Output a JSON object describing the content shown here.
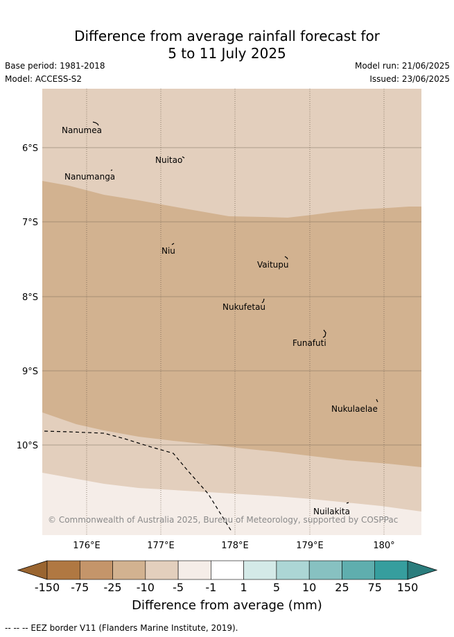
{
  "title_line1": "Difference from average rainfall forecast for",
  "title_line2": "5 to 11 July 2025",
  "base_period": "Base period: 1981-2018",
  "model": "Model: ACCESS-S2",
  "model_run": "Model run: 21/06/2025",
  "issued": "Issued: 23/06/2025",
  "copyright": "© Commonwealth of Australia 2025, Bureau of Meteorology, supported by COSPPac",
  "x_ticks": [
    "176°E",
    "177°E",
    "178°E",
    "179°E",
    "180°"
  ],
  "y_ticks": [
    "6°S",
    "7°S",
    "8°S",
    "9°S",
    "10°S"
  ],
  "islands": [
    {
      "name": "Nanumea"
    },
    {
      "name": "Nuitao"
    },
    {
      "name": "Nanumanga"
    },
    {
      "name": "Niu"
    },
    {
      "name": "Vaitupu"
    },
    {
      "name": "Nukufetau"
    },
    {
      "name": "Funafuti"
    },
    {
      "name": "Nukulaelae"
    },
    {
      "name": "Nuilakita"
    }
  ],
  "colorbar": {
    "labels": [
      "-150",
      "-75",
      "-25",
      "-10",
      "-5",
      "-1",
      "1",
      "5",
      "10",
      "25",
      "75",
      "150"
    ],
    "colors": [
      "#b07842",
      "#c4956a",
      "#d2b290",
      "#e3cfbd",
      "#f5ede8",
      "#ffffff",
      "#d4eae8",
      "#acd6d5",
      "#87c1c1",
      "#5faeae",
      "#369e9e"
    ],
    "low_color": "#9a6530",
    "high_color": "#2b7d7d",
    "title": "Difference from average (mm)"
  },
  "legend_colors": {
    "band_-25_-10": "#d2b290",
    "band_-10_-5": "#e3cfbd",
    "band_-5_-1": "#f5ede8"
  },
  "footer": "-- -- -- EEZ border V11 (Flanders Marine Institute, 2019)."
}
